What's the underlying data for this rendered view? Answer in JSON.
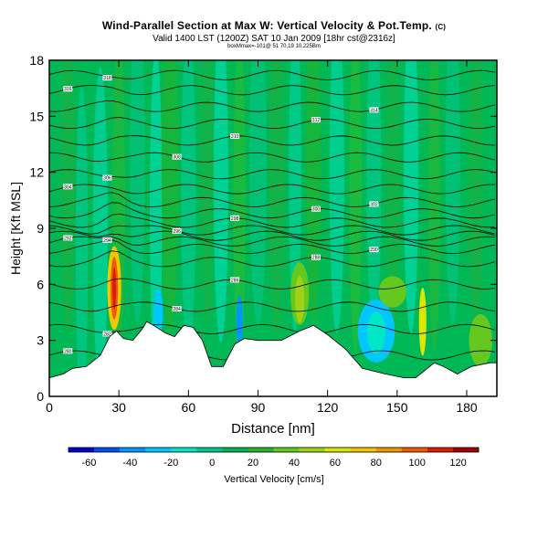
{
  "header": {
    "title": "Wind-Parallel Section at Max W: Vertical Velocity & Pot.Temp.",
    "title_mark": "(C)",
    "subtitle": "Valid 1400 LST (1200Z) SAT 10 Jan 2009 [18hr cst@2316z]",
    "subtitle2": "boxMmax=-101@ 51 70,19 10,225Bm"
  },
  "chart_data": {
    "type": "heatmap",
    "title": "Wind-Parallel Section at Max W: Vertical Velocity & Pot.Temp.",
    "xlabel": "Distance [nm]",
    "ylabel": "Height [Kft MSL]",
    "xlim": [
      0,
      193
    ],
    "ylim": [
      0,
      18
    ],
    "xticks": [
      0,
      30,
      60,
      90,
      120,
      150,
      180
    ],
    "yticks": [
      0,
      3,
      6,
      9,
      12,
      15,
      18
    ],
    "colorbar": {
      "label": "Vertical Velocity [cm/s]",
      "ticks": [
        -60,
        -40,
        -20,
        0,
        20,
        40,
        60,
        80,
        100,
        120
      ],
      "range": [
        -70,
        130
      ],
      "colors": [
        "#0000c8",
        "#0050f0",
        "#0096ff",
        "#00c8ff",
        "#00e6c8",
        "#00c88c",
        "#00b450",
        "#28b428",
        "#64c81e",
        "#a0d214",
        "#dce600",
        "#f0c800",
        "#f09600",
        "#f05a00",
        "#dc1e00",
        "#a00000"
      ]
    },
    "terrain": [
      [
        0,
        1
      ],
      [
        6,
        1.2
      ],
      [
        10,
        1.5
      ],
      [
        16,
        1.6
      ],
      [
        22,
        2.2
      ],
      [
        26,
        3.2
      ],
      [
        29,
        3.5
      ],
      [
        32,
        3.1
      ],
      [
        36,
        3.0
      ],
      [
        40,
        3.6
      ],
      [
        42,
        4.0
      ],
      [
        45,
        3.8
      ],
      [
        50,
        3.4
      ],
      [
        54,
        3.2
      ],
      [
        58,
        3.8
      ],
      [
        62,
        3.7
      ],
      [
        66,
        3.0
      ],
      [
        70,
        1.6
      ],
      [
        75,
        1.6
      ],
      [
        80,
        2.8
      ],
      [
        84,
        3.1
      ],
      [
        90,
        3.0
      ],
      [
        100,
        3.0
      ],
      [
        108,
        3.5
      ],
      [
        114,
        3.8
      ],
      [
        120,
        3.3
      ],
      [
        128,
        2.5
      ],
      [
        135,
        1.5
      ],
      [
        145,
        1.2
      ],
      [
        153,
        1.0
      ],
      [
        158,
        1.0
      ],
      [
        162,
        1.4
      ],
      [
        166,
        1.8
      ],
      [
        170,
        1.6
      ],
      [
        176,
        1.2
      ],
      [
        182,
        1.6
      ],
      [
        190,
        1.8
      ],
      [
        193,
        1.8
      ]
    ],
    "theta_contours": [
      {
        "base": 2.2,
        "label": "280"
      },
      {
        "base": 3.6,
        "label": "282"
      },
      {
        "base": 4.8,
        "label": "284"
      },
      {
        "base": 6.0,
        "label": "286"
      },
      {
        "base": 7.2,
        "label": "288"
      },
      {
        "base": 7.9,
        "label": "290"
      },
      {
        "base": 8.3,
        "label": "292"
      },
      {
        "base": 8.6,
        "label": "294"
      },
      {
        "base": 8.9,
        "label": "296"
      },
      {
        "base": 9.3,
        "label": "298"
      },
      {
        "base": 9.8,
        "label": "300"
      },
      {
        "base": 10.4,
        "label": "302"
      },
      {
        "base": 11.1,
        "label": "304"
      },
      {
        "base": 11.9,
        "label": "306"
      },
      {
        "base": 12.8,
        "label": "308"
      },
      {
        "base": 13.7,
        "label": "310"
      },
      {
        "base": 14.6,
        "label": "312"
      },
      {
        "base": 15.5,
        "label": "314"
      },
      {
        "base": 16.4,
        "label": "316"
      },
      {
        "base": 17.2,
        "label": "318"
      }
    ]
  }
}
